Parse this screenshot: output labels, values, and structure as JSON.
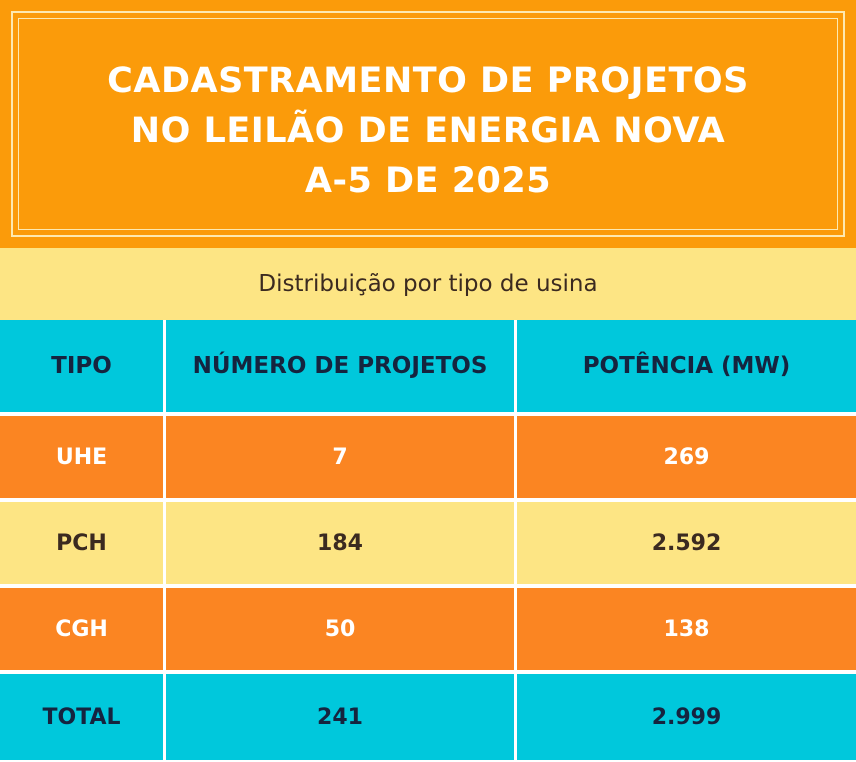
{
  "header": {
    "title_lines": [
      "CADASTRAMENTO DE PROJETOS",
      "NO LEILÃO DE ENERGIA NOVA",
      "A-5 DE 2025"
    ]
  },
  "subtitle": "Distribuição por tipo de usina",
  "table": {
    "columns": [
      "TIPO",
      "NÚMERO DE PROJETOS",
      "POTÊNCIA (MW)"
    ],
    "rows": [
      {
        "tipo": "UHE",
        "numero": "7",
        "potencia": "269"
      },
      {
        "tipo": "PCH",
        "numero": "184",
        "potencia": "2.592"
      },
      {
        "tipo": "CGH",
        "numero": "50",
        "potencia": "138"
      }
    ],
    "total": {
      "tipo": "TOTAL",
      "numero": "241",
      "potencia": "2.999"
    }
  },
  "colors": {
    "header_orange": "#fb9b0a",
    "row_orange": "#fb8522",
    "pale_yellow": "#fde584",
    "cyan": "#00c8dc",
    "navy_text": "#15243f"
  }
}
